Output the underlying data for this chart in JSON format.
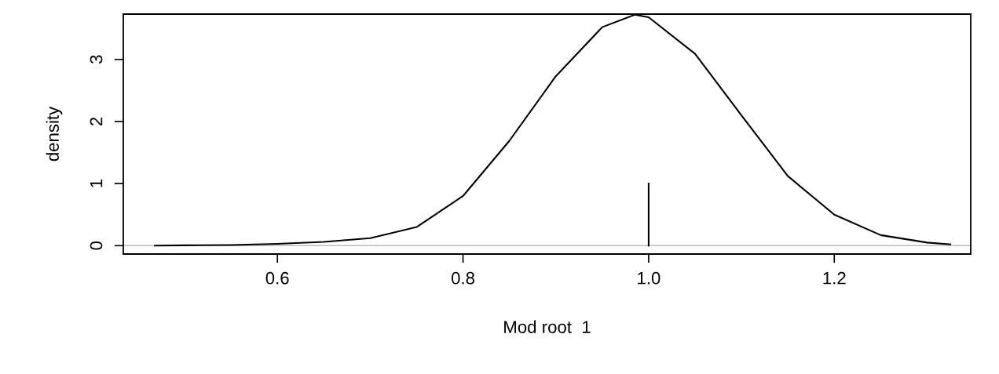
{
  "chart_data": {
    "type": "line",
    "xlabel": "Mod root  1",
    "ylabel": "density",
    "series": [
      {
        "color": "#000000",
        "x": [
          0.468,
          0.5,
          0.55,
          0.6,
          0.65,
          0.7,
          0.75,
          0.8,
          0.85,
          0.9,
          0.95,
          0.985,
          1.0,
          1.05,
          1.1,
          1.15,
          1.2,
          1.25,
          1.3,
          1.325
        ],
        "values": [
          0.0,
          0.005,
          0.01,
          0.03,
          0.06,
          0.12,
          0.3,
          0.8,
          1.69,
          2.73,
          3.52,
          3.72,
          3.68,
          3.09,
          2.1,
          1.12,
          0.5,
          0.17,
          0.05,
          0.02
        ]
      },
      {
        "color": "#000000",
        "x": [
          1.0,
          1.0
        ],
        "values": [
          0,
          1
        ]
      }
    ],
    "ref_lines": [
      {
        "axis": "y",
        "value": 0,
        "color": "#bebebe"
      }
    ],
    "xlim": [
      0.434,
      1.347
    ],
    "ylim": [
      -0.135,
      3.73
    ],
    "xticks": [
      {
        "value": 0.6,
        "label": "0.6"
      },
      {
        "value": 0.8,
        "label": "0.8"
      },
      {
        "value": 1.0,
        "label": "1.0"
      },
      {
        "value": 1.2,
        "label": "1.2"
      }
    ],
    "yticks": [
      0,
      1,
      2,
      3
    ],
    "grid": false,
    "legend": false
  }
}
